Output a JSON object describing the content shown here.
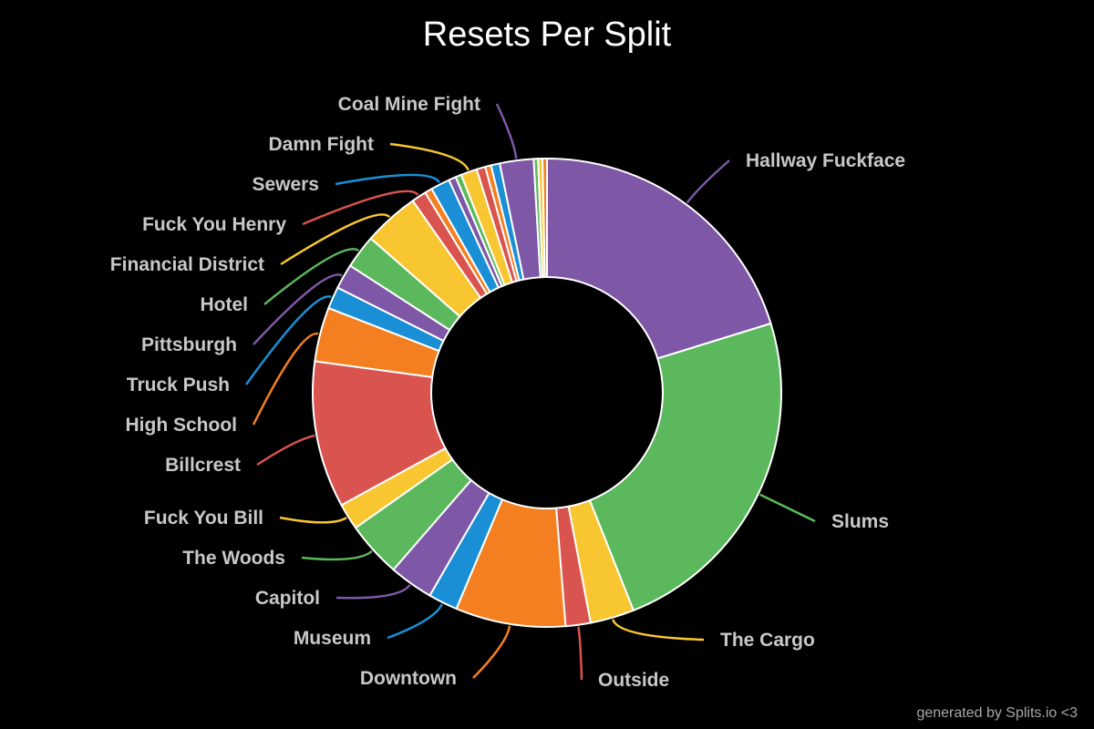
{
  "chart_data": {
    "type": "pie",
    "style": "donut",
    "title": "Resets Per Split",
    "slices": [
      {
        "label": "Hallway Fuckface",
        "value": 20.0,
        "color": "#7e57a6"
      },
      {
        "label": "Slums",
        "value": 23.5,
        "color": "#5cb85c"
      },
      {
        "label": "The Cargo",
        "value": 3.0,
        "color": "#f8c630"
      },
      {
        "label": "Outside",
        "value": 1.7,
        "color": "#d9534f"
      },
      {
        "label": "Downtown",
        "value": 7.5,
        "color": "#f47f20"
      },
      {
        "label": "Museum",
        "value": 2.0,
        "color": "#1a8fd6"
      },
      {
        "label": "Capitol",
        "value": 3.0,
        "color": "#7e57a6"
      },
      {
        "label": "The Woods",
        "value": 3.8,
        "color": "#5cb85c"
      },
      {
        "label": "Fuck You Bill",
        "value": 1.8,
        "color": "#f8c630"
      },
      {
        "label": "Billcrest",
        "value": 10.0,
        "color": "#d9534f"
      },
      {
        "label": "High School",
        "value": 3.7,
        "color": "#f47f20"
      },
      {
        "label": "Truck Push",
        "value": 1.5,
        "color": "#1a8fd6"
      },
      {
        "label": "Pittsburgh",
        "value": 1.7,
        "color": "#7e57a6"
      },
      {
        "label": "Hotel",
        "value": 2.3,
        "color": "#5cb85c"
      },
      {
        "label": "Financial District",
        "value": 3.8,
        "color": "#f8c630"
      },
      {
        "label": "Fuck You Henry",
        "value": 1.0,
        "color": "#d9534f"
      },
      {
        "label": "",
        "value": 0.5,
        "color": "#f47f20"
      },
      {
        "label": "Sewers",
        "value": 1.3,
        "color": "#1a8fd6"
      },
      {
        "label": "",
        "value": 0.5,
        "color": "#7e57a6"
      },
      {
        "label": "",
        "value": 0.4,
        "color": "#5cb85c"
      },
      {
        "label": "Damn Fight",
        "value": 1.1,
        "color": "#f8c630"
      },
      {
        "label": "",
        "value": 0.6,
        "color": "#d9534f"
      },
      {
        "label": "",
        "value": 0.4,
        "color": "#f47f20"
      },
      {
        "label": "",
        "value": 0.6,
        "color": "#1a8fd6"
      },
      {
        "label": "Coal Mine Fight",
        "value": 2.3,
        "color": "#7e57a6"
      },
      {
        "label": "",
        "value": 0.3,
        "color": "#5cb85c"
      },
      {
        "label": "",
        "value": 0.3,
        "color": "#f8c630"
      },
      {
        "label": "",
        "value": 0.3,
        "color": "#f47f20"
      }
    ]
  },
  "footer": {
    "credit": "generated by Splits.io <3"
  }
}
